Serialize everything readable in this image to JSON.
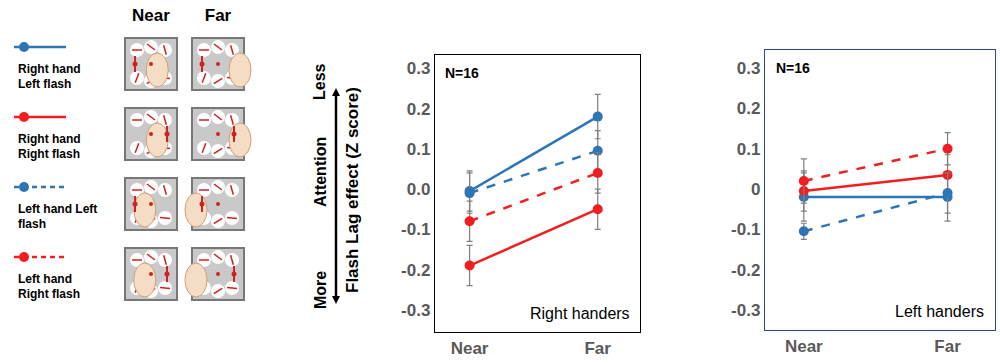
{
  "header": {
    "columns": [
      "Near",
      "Far"
    ]
  },
  "attention": {
    "top": "Less",
    "label": "Attention",
    "bottom": "More"
  },
  "chart_data": [
    {
      "type": "line",
      "y_label": "Flash Lag effect (Z score)",
      "annotations": [
        "N=16",
        "Right handers"
      ],
      "categories": [
        "Near",
        "Far"
      ],
      "ylim": [
        -0.355,
        0.333
      ],
      "yticks": [
        -0.3,
        -0.2,
        -0.1,
        {
          "value": 0,
          "label": "0.0"
        },
        0.1,
        0.2,
        0.3
      ],
      "grid": false,
      "series": [
        {
          "name": "Right hand Left flash",
          "color": "#2e75b6",
          "line_style": "solid",
          "marker": "circle",
          "values": [
            -0.005,
            0.18
          ],
          "errors": [
            0.05,
            0.055
          ]
        },
        {
          "name": "Right hand Right flash",
          "color": "#f01e1e",
          "line_style": "solid",
          "marker": "circle",
          "values": [
            -0.19,
            -0.05
          ],
          "errors": [
            0.05,
            0.05
          ]
        },
        {
          "name": "Left hand Left flash",
          "color": "#2e75b6",
          "line_style": "dash",
          "marker": "circle",
          "values": [
            -0.01,
            0.095
          ],
          "errors": [
            0.05,
            0.05
          ]
        },
        {
          "name": "Left hand Right flash",
          "color": "#f01e1e",
          "line_style": "dash",
          "marker": "circle",
          "values": [
            -0.08,
            0.04
          ],
          "errors": [
            0.05,
            0.05
          ]
        }
      ]
    },
    {
      "type": "line",
      "annotations": [
        "N=16",
        "Left handers"
      ],
      "categories": [
        "Near",
        "Far"
      ],
      "ylim": [
        -0.35,
        0.345
      ],
      "yticks": [
        -0.3,
        -0.2,
        -0.1,
        0,
        0.1,
        0.2,
        0.3
      ],
      "grid": false,
      "series": [
        {
          "name": "Right hand Left flash",
          "color": "#2e75b6",
          "line_style": "solid",
          "marker": "circle",
          "values": [
            -0.02,
            -0.02
          ],
          "errors": [
            0.06,
            0.06
          ]
        },
        {
          "name": "Right hand Right flash",
          "color": "#f01e1e",
          "line_style": "solid",
          "marker": "circle",
          "values": [
            -0.005,
            0.035
          ],
          "errors": [
            0.05,
            0.05
          ]
        },
        {
          "name": "Left hand Left flash",
          "color": "#2e75b6",
          "line_style": "dash",
          "marker": "circle",
          "values": [
            -0.105,
            -0.01
          ],
          "errors": [
            0.02,
            0.05
          ]
        },
        {
          "name": "Left hand Right flash",
          "color": "#f01e1e",
          "line_style": "dash",
          "marker": "circle",
          "values": [
            0.02,
            0.1
          ],
          "errors": [
            0.055,
            0.04
          ]
        }
      ]
    }
  ]
}
